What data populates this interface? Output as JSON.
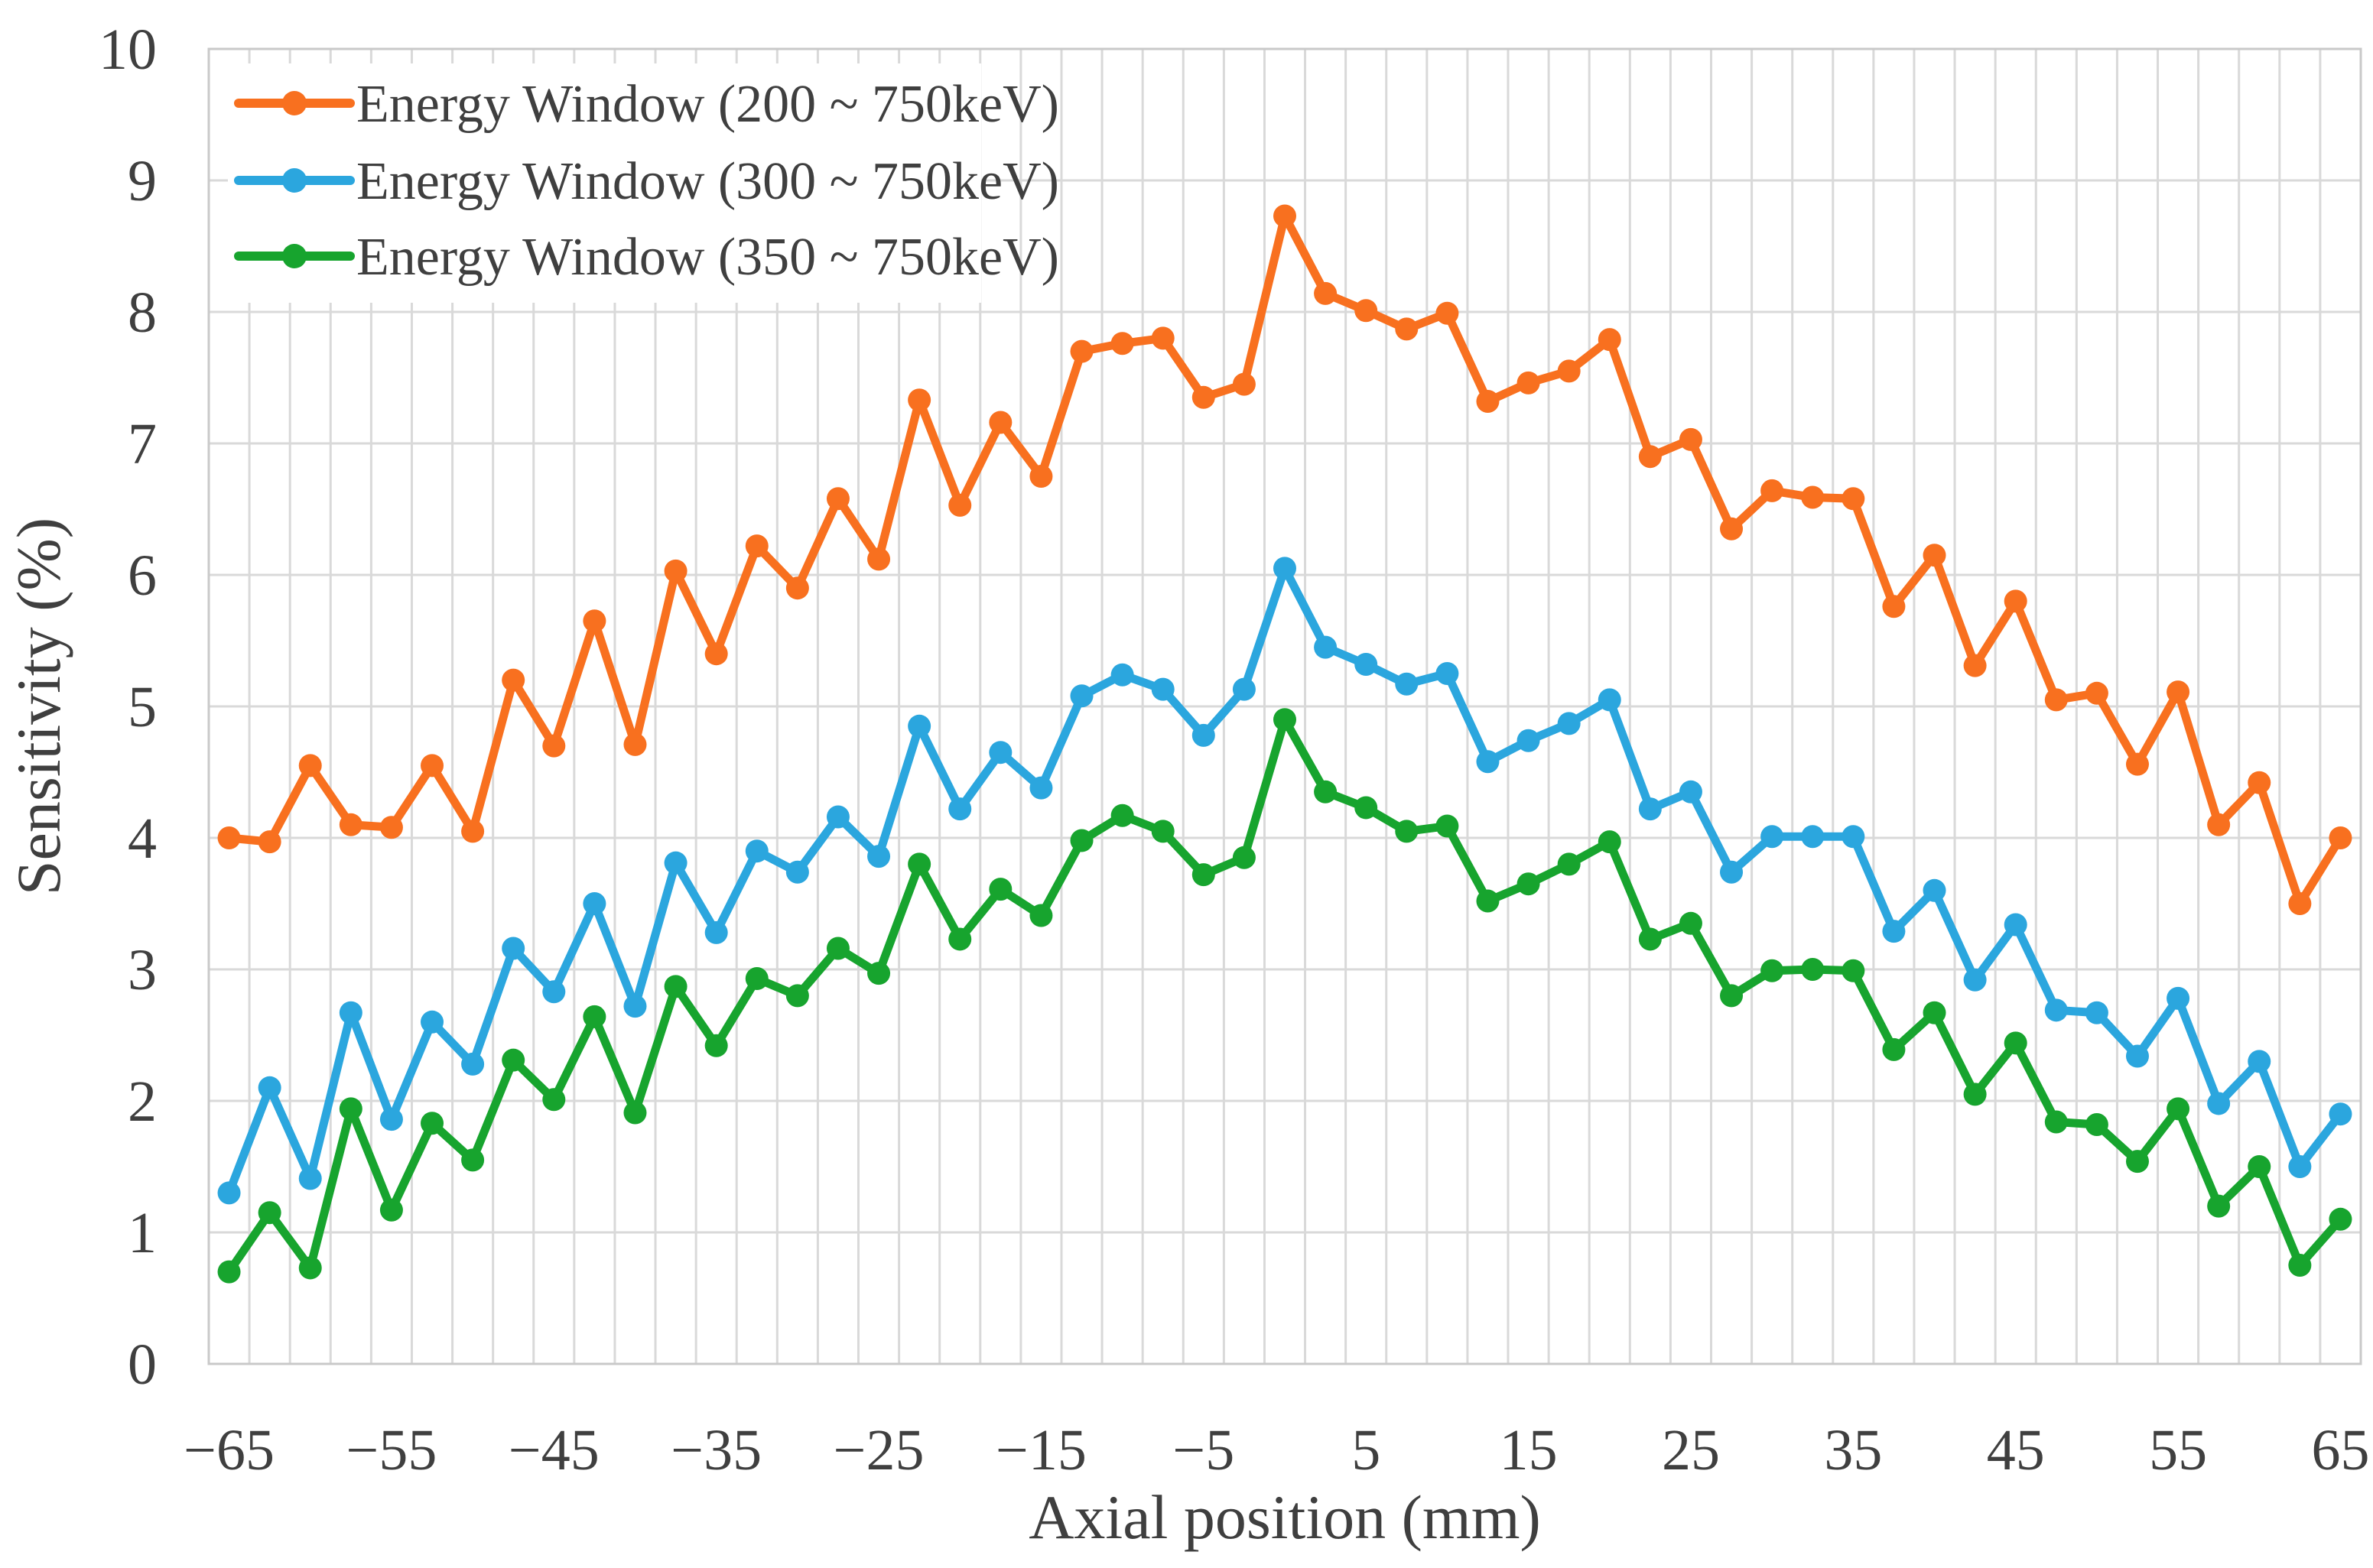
{
  "chart_data": {
    "type": "line",
    "title": "",
    "xlabel": "Axial position (mm)",
    "ylabel": "Sensitivity  (%)",
    "xlim": [
      -66.25,
      66.25
    ],
    "ylim": [
      0,
      10
    ],
    "y_ticks": [
      0,
      1,
      2,
      3,
      4,
      5,
      6,
      7,
      8,
      9,
      10
    ],
    "x_tick_labels": [
      "−65",
      "−55",
      "−45",
      "−35",
      "−25",
      "−15",
      "−5",
      "5",
      "15",
      "25",
      "35",
      "45",
      "55",
      "65"
    ],
    "x_tick_positions_mm": [
      -65,
      -55,
      -45,
      -35,
      -25,
      -15,
      -5,
      5,
      15,
      25,
      35,
      45,
      55,
      65
    ],
    "grid": "on",
    "minor_x_grid_step_mm": 2.5,
    "legend_position": "top-left-inside",
    "x": [
      -65,
      -62.5,
      -60,
      -57.5,
      -55,
      -52.5,
      -50,
      -47.5,
      -45,
      -42.5,
      -40,
      -37.5,
      -35,
      -32.5,
      -30,
      -27.5,
      -25,
      -22.5,
      -20,
      -17.5,
      -15,
      -12.5,
      -10,
      -7.5,
      -5,
      -2.5,
      0,
      2.5,
      5,
      7.5,
      10,
      12.5,
      15,
      17.5,
      20,
      22.5,
      25,
      27.5,
      30,
      32.5,
      35,
      37.5,
      40,
      42.5,
      45,
      47.5,
      50,
      52.5,
      55,
      57.5,
      60,
      62.5,
      65
    ],
    "series": [
      {
        "name": "Energy Window (200 ~ 750keV)",
        "color": "#F8701F",
        "values": [
          4.0,
          3.97,
          4.55,
          4.1,
          4.08,
          4.55,
          4.05,
          5.2,
          4.7,
          5.65,
          4.71,
          6.03,
          5.4,
          6.22,
          5.9,
          6.58,
          6.12,
          7.33,
          6.53,
          7.16,
          6.75,
          7.7,
          7.76,
          7.8,
          7.35,
          7.45,
          8.73,
          8.14,
          8.01,
          7.87,
          7.99,
          7.32,
          7.46,
          7.55,
          7.79,
          6.9,
          7.03,
          6.35,
          6.64,
          6.59,
          6.58,
          5.76,
          6.15,
          5.31,
          5.8,
          5.05,
          5.1,
          4.56,
          5.11,
          4.1,
          4.42,
          3.5,
          4.0
        ]
      },
      {
        "name": "Energy Window (300 ~ 750keV)",
        "color": "#2BA6DE",
        "values": [
          1.3,
          2.1,
          1.41,
          2.67,
          1.86,
          2.6,
          2.28,
          3.16,
          2.83,
          3.5,
          2.72,
          3.81,
          3.28,
          3.9,
          3.74,
          4.16,
          3.86,
          4.85,
          4.22,
          4.65,
          4.38,
          5.08,
          5.24,
          5.13,
          4.78,
          5.13,
          6.05,
          5.45,
          5.32,
          5.17,
          5.25,
          4.58,
          4.74,
          4.87,
          5.05,
          4.22,
          4.35,
          3.74,
          4.01,
          4.01,
          4.01,
          3.29,
          3.6,
          2.92,
          3.34,
          2.69,
          2.67,
          2.34,
          2.78,
          1.98,
          2.3,
          1.5,
          1.9
        ]
      },
      {
        "name": "Energy Window (350 ~ 750keV)",
        "color": "#17A42E",
        "values": [
          0.7,
          1.15,
          0.73,
          1.94,
          1.17,
          1.83,
          1.55,
          2.31,
          2.01,
          2.64,
          1.91,
          2.87,
          2.42,
          2.93,
          2.8,
          3.16,
          2.97,
          3.8,
          3.23,
          3.61,
          3.41,
          3.98,
          4.17,
          4.05,
          3.72,
          3.85,
          4.9,
          4.35,
          4.23,
          4.05,
          4.09,
          3.52,
          3.65,
          3.8,
          3.97,
          3.23,
          3.35,
          2.8,
          2.99,
          3.0,
          2.99,
          2.39,
          2.67,
          2.05,
          2.44,
          1.84,
          1.82,
          1.54,
          1.94,
          1.2,
          1.5,
          0.75,
          1.1
        ]
      }
    ],
    "colors": {
      "grid": "#d9d9d9",
      "plot_border": "#c9c9c9",
      "axis_text": "#3f3f3f",
      "background": "#ffffff"
    }
  }
}
